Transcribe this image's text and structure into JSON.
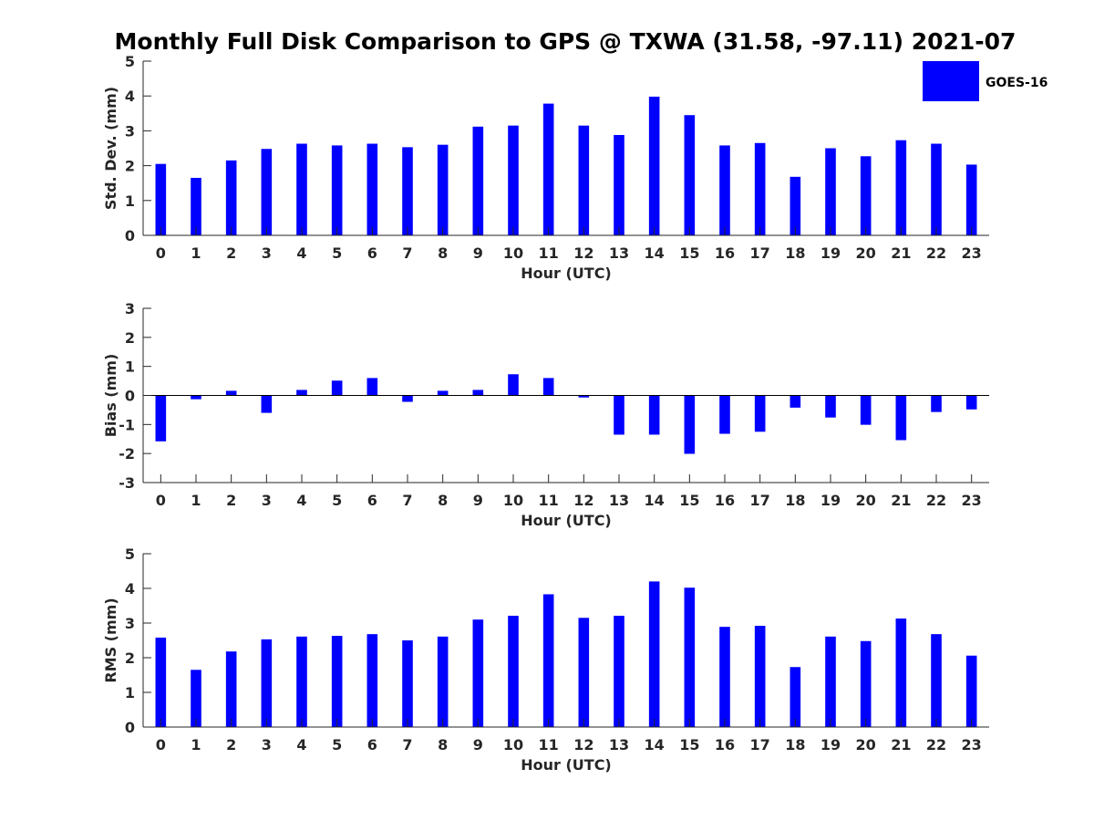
{
  "title": "Monthly Full Disk Comparison to GPS @ TXWA (31.58, -97.11) 2021-07",
  "legend": {
    "label": "GOES-16",
    "color": "#0000ff",
    "placement": "top-right"
  },
  "chart_data": [
    {
      "type": "bar",
      "ylabel": "Std. Dev. (mm)",
      "xlabel": "Hour (UTC)",
      "xlim": [
        -0.5,
        23.5
      ],
      "ylim": [
        0,
        5
      ],
      "yticks": [
        0,
        1,
        2,
        3,
        4,
        5
      ],
      "grid": false,
      "categories": [
        "0",
        "1",
        "2",
        "3",
        "4",
        "5",
        "6",
        "7",
        "8",
        "9",
        "10",
        "11",
        "12",
        "13",
        "14",
        "15",
        "16",
        "17",
        "18",
        "19",
        "20",
        "21",
        "22",
        "23"
      ],
      "series": [
        {
          "name": "GOES-16",
          "color": "#0000ff",
          "values": [
            2.05,
            1.65,
            2.15,
            2.48,
            2.63,
            2.58,
            2.63,
            2.53,
            2.6,
            3.12,
            3.15,
            3.78,
            3.15,
            2.88,
            3.98,
            3.45,
            2.58,
            2.65,
            1.68,
            2.5,
            2.27,
            2.73,
            2.63,
            2.03
          ]
        }
      ]
    },
    {
      "type": "bar",
      "ylabel": "Bias (mm)",
      "xlabel": "Hour (UTC)",
      "xlim": [
        -0.5,
        23.5
      ],
      "ylim": [
        -3,
        3
      ],
      "yticks": [
        -3,
        -2,
        -1,
        0,
        1,
        2,
        3
      ],
      "grid": false,
      "zero_line": true,
      "categories": [
        "0",
        "1",
        "2",
        "3",
        "4",
        "5",
        "6",
        "7",
        "8",
        "9",
        "10",
        "11",
        "12",
        "13",
        "14",
        "15",
        "16",
        "17",
        "18",
        "19",
        "20",
        "21",
        "22",
        "23"
      ],
      "series": [
        {
          "name": "GOES-16",
          "color": "#0000ff",
          "values": [
            -1.58,
            -0.13,
            0.16,
            -0.6,
            0.19,
            0.51,
            0.6,
            -0.22,
            0.16,
            0.19,
            0.73,
            0.6,
            -0.07,
            -1.35,
            -1.35,
            -2.01,
            -1.32,
            -1.25,
            -0.42,
            -0.76,
            -1.01,
            -1.54,
            -0.57,
            -0.48
          ]
        }
      ]
    },
    {
      "type": "bar",
      "ylabel": "RMS (mm)",
      "xlabel": "Hour (UTC)",
      "xlim": [
        -0.5,
        23.5
      ],
      "ylim": [
        0,
        5
      ],
      "yticks": [
        0,
        1,
        2,
        3,
        4,
        5
      ],
      "grid": false,
      "categories": [
        "0",
        "1",
        "2",
        "3",
        "4",
        "5",
        "6",
        "7",
        "8",
        "9",
        "10",
        "11",
        "12",
        "13",
        "14",
        "15",
        "16",
        "17",
        "18",
        "19",
        "20",
        "21",
        "22",
        "23"
      ],
      "series": [
        {
          "name": "GOES-16",
          "color": "#0000ff",
          "values": [
            2.58,
            1.65,
            2.18,
            2.53,
            2.61,
            2.63,
            2.68,
            2.5,
            2.61,
            3.1,
            3.21,
            3.83,
            3.15,
            3.21,
            4.2,
            4.02,
            2.89,
            2.92,
            1.73,
            2.61,
            2.48,
            3.13,
            2.68,
            2.06
          ]
        }
      ]
    }
  ]
}
